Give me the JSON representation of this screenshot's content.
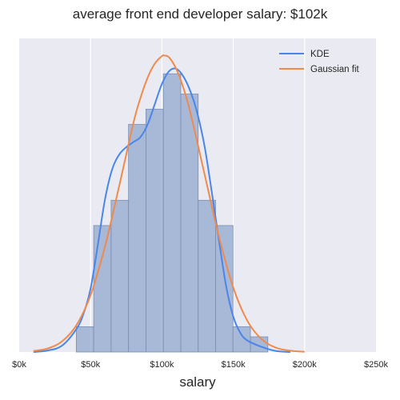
{
  "chart_data": {
    "type": "bar",
    "title": "average front end developer salary: $102k",
    "xlabel": "salary",
    "ylabel": "",
    "xlim": [
      0,
      250000
    ],
    "x_ticks": [
      0,
      50000,
      100000,
      150000,
      200000,
      250000
    ],
    "x_tick_labels": [
      "$0k",
      "$50k",
      "$100k",
      "$150k",
      "$200k",
      "$250k"
    ],
    "y_axis_visible": false,
    "grid": "x",
    "legend_position": "top-right",
    "histogram": {
      "bin_edges": [
        40000,
        52200,
        64400,
        76600,
        88800,
        101000,
        113200,
        125400,
        137600,
        149800,
        162000,
        174200
      ],
      "counts": [
        1,
        5,
        6,
        9,
        9.6,
        11,
        10.2,
        6,
        5,
        1,
        0.6
      ],
      "color": "#8fa5cc"
    },
    "series": [
      {
        "name": "KDE",
        "color": "#4a86e8",
        "x": [
          10000,
          20000,
          30000,
          40000,
          45000,
          50000,
          55000,
          60000,
          65000,
          70000,
          75000,
          80000,
          85000,
          90000,
          95000,
          100000,
          105000,
          110000,
          115000,
          120000,
          125000,
          130000,
          135000,
          140000,
          145000,
          150000,
          155000,
          160000,
          170000,
          180000,
          190000
        ],
        "y": [
          0,
          0.06,
          0.25,
          0.9,
          1.5,
          2.5,
          4.2,
          6.0,
          7.2,
          7.8,
          8.1,
          8.3,
          8.5,
          9.0,
          9.8,
          10.6,
          11.1,
          11.2,
          10.9,
          10.3,
          9.4,
          8.1,
          6.3,
          4.4,
          2.6,
          1.4,
          0.75,
          0.45,
          0.2,
          0.04,
          0
        ]
      },
      {
        "name": "Gaussian fit",
        "color": "#f08a4b",
        "x": [
          10000,
          20000,
          30000,
          40000,
          50000,
          60000,
          70000,
          80000,
          85000,
          90000,
          95000,
          100000,
          102000,
          105000,
          110000,
          115000,
          120000,
          130000,
          140000,
          150000,
          160000,
          170000,
          180000,
          190000,
          200000
        ],
        "y": [
          0.04,
          0.14,
          0.42,
          1.05,
          2.25,
          4.15,
          6.55,
          9.05,
          10.05,
          10.85,
          11.4,
          11.7,
          11.72,
          11.65,
          11.2,
          10.45,
          9.45,
          7.0,
          4.55,
          2.55,
          1.22,
          0.5,
          0.17,
          0.05,
          0.01
        ]
      }
    ]
  }
}
